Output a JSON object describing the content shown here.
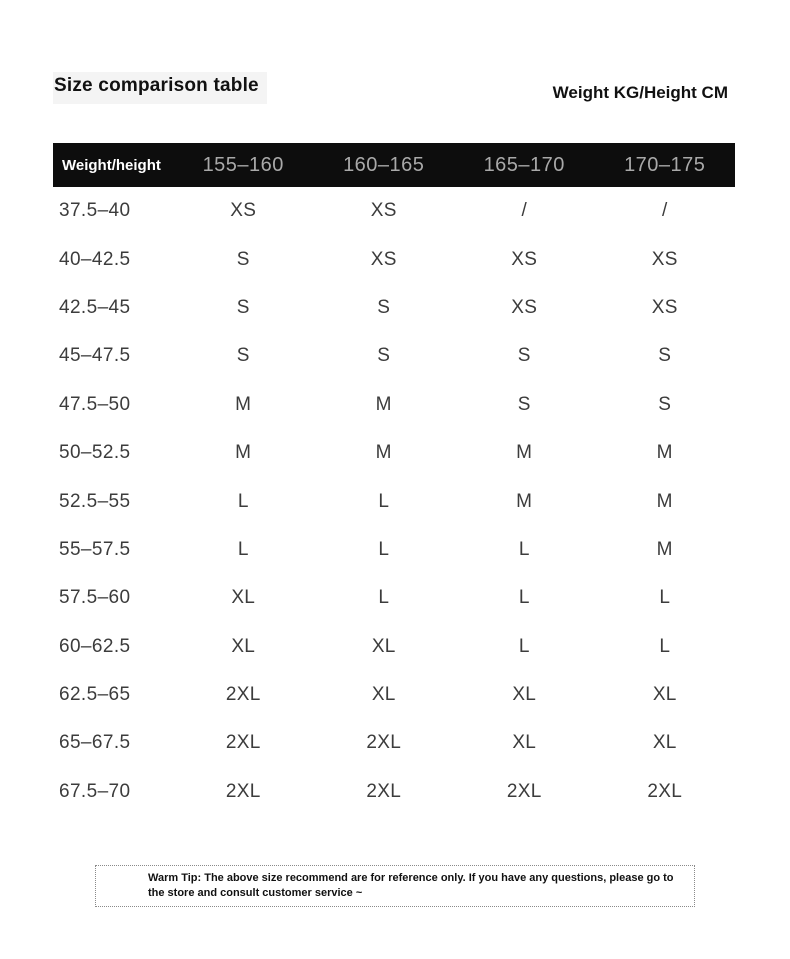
{
  "page": {
    "title": "Size comparison table",
    "unit_label": "Weight KG/Height CM"
  },
  "table": {
    "corner_header": "Weight/height",
    "height_columns": [
      "155–160",
      "160–165",
      "165–170",
      "170–175"
    ],
    "rows": [
      {
        "weight": "37.5–40",
        "sizes": [
          "XS",
          "XS",
          "/",
          "/"
        ]
      },
      {
        "weight": "40–42.5",
        "sizes": [
          "S",
          "XS",
          "XS",
          "XS"
        ]
      },
      {
        "weight": "42.5–45",
        "sizes": [
          "S",
          "S",
          "XS",
          "XS"
        ]
      },
      {
        "weight": "45–47.5",
        "sizes": [
          "S",
          "S",
          "S",
          "S"
        ]
      },
      {
        "weight": "47.5–50",
        "sizes": [
          "M",
          "M",
          "S",
          "S"
        ]
      },
      {
        "weight": "50–52.5",
        "sizes": [
          "M",
          "M",
          "M",
          "M"
        ]
      },
      {
        "weight": "52.5–55",
        "sizes": [
          "L",
          "L",
          "M",
          "M"
        ]
      },
      {
        "weight": "55–57.5",
        "sizes": [
          "L",
          "L",
          "L",
          "M"
        ]
      },
      {
        "weight": "57.5–60",
        "sizes": [
          "XL",
          "L",
          "L",
          "L"
        ]
      },
      {
        "weight": "60–62.5",
        "sizes": [
          "XL",
          "XL",
          "L",
          "L"
        ]
      },
      {
        "weight": "62.5–65",
        "sizes": [
          "2XL",
          "XL",
          "XL",
          "XL"
        ]
      },
      {
        "weight": "65–67.5",
        "sizes": [
          "2XL",
          "2XL",
          "XL",
          "XL"
        ]
      },
      {
        "weight": "67.5–70",
        "sizes": [
          "2XL",
          "2XL",
          "2XL",
          "2XL"
        ]
      }
    ]
  },
  "footer": {
    "tip": "Warm Tip: The above size recommend are for reference only. If you have any questions, please go to the store and consult customer service ~"
  },
  "colors": {
    "header_bar_bg": "#0d0d0d",
    "header_column_text": "#a9a9a9",
    "corner_header_text": "#ffffff",
    "data_text": "#3c3c3c",
    "title_text": "#111111",
    "title_highlight_bg": "#f4f4f4",
    "tip_border": "#8a8a8a",
    "page_bg": "#ffffff"
  }
}
